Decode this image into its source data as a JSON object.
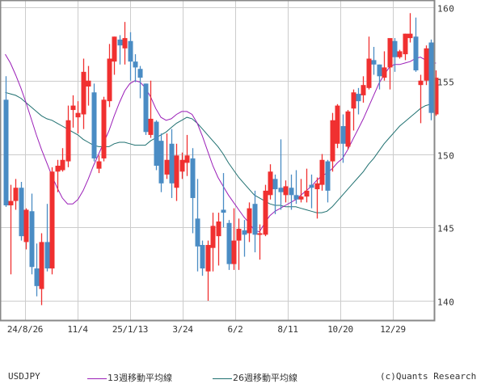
{
  "chart_data": {
    "type": "candlestick",
    "symbol": "USDJPY",
    "ylim": [
      138.7,
      160.4
    ],
    "yticks": [
      140,
      145,
      150,
      155,
      160
    ],
    "xtick_labels": [
      "24/8/26",
      "11/4",
      "25/1/13",
      "3/24",
      "6/2",
      "8/11",
      "10/20",
      "12/29"
    ],
    "grid": true,
    "colors": {
      "up": "#f03030",
      "down": "#4a8cc4",
      "ma13": "#9b1fb8",
      "ma26": "#1f7070",
      "grid": "#cccccc",
      "frame": "#888888"
    },
    "candles": [
      [
        153.7,
        155.3,
        146.4,
        146.5
      ],
      [
        146.5,
        147.9,
        141.8,
        146.8
      ],
      [
        146.8,
        148.3,
        146.2,
        147.7
      ],
      [
        147.7,
        148.1,
        144.1,
        144.4
      ],
      [
        144.0,
        146.3,
        143.5,
        146.2
      ],
      [
        146.1,
        147.3,
        141.8,
        142.3
      ],
      [
        142.2,
        143.9,
        140.3,
        141.0
      ],
      [
        140.8,
        144.6,
        139.7,
        144.0
      ],
      [
        144.0,
        146.6,
        142.0,
        142.2
      ],
      [
        142.2,
        149.1,
        141.8,
        148.8
      ],
      [
        148.8,
        149.6,
        147.4,
        149.2
      ],
      [
        148.9,
        150.4,
        148.8,
        149.6
      ],
      [
        149.5,
        153.3,
        149.1,
        152.3
      ],
      [
        153.0,
        154.0,
        151.8,
        153.3
      ],
      [
        152.5,
        153.6,
        151.4,
        152.8
      ],
      [
        152.7,
        156.5,
        151.7,
        155.6
      ],
      [
        154.6,
        156.0,
        153.3,
        155.0
      ],
      [
        154.2,
        154.8,
        149.5,
        149.7
      ],
      [
        149.0,
        149.9,
        148.7,
        149.5
      ],
      [
        149.7,
        153.9,
        149.5,
        153.7
      ],
      [
        153.6,
        157.5,
        153.2,
        156.5
      ],
      [
        156.3,
        158.0,
        155.4,
        158.0
      ],
      [
        157.8,
        158.1,
        156.1,
        157.4
      ],
      [
        157.2,
        159.0,
        156.1,
        157.9
      ],
      [
        157.7,
        158.3,
        155.0,
        156.3
      ],
      [
        156.3,
        156.8,
        154.9,
        155.9
      ],
      [
        155.8,
        156.0,
        153.8,
        155.2
      ],
      [
        154.8,
        154.8,
        151.3,
        151.5
      ],
      [
        151.3,
        155.0,
        151.1,
        152.4
      ],
      [
        152.2,
        152.3,
        148.9,
        149.2
      ],
      [
        150.9,
        151.4,
        147.4,
        148.0
      ],
      [
        148.6,
        151.4,
        148.3,
        149.6
      ],
      [
        150.7,
        151.7,
        147.0,
        148.0
      ],
      [
        147.7,
        150.7,
        146.8,
        149.9
      ],
      [
        148.8,
        150.1,
        148.3,
        149.6
      ],
      [
        149.4,
        151.3,
        148.5,
        149.9
      ],
      [
        149.7,
        150.4,
        144.6,
        147.0
      ],
      [
        145.6,
        148.3,
        142.0,
        143.7
      ],
      [
        143.8,
        144.1,
        141.7,
        142.2
      ],
      [
        142.0,
        144.1,
        140.0,
        143.8
      ],
      [
        143.6,
        146.0,
        142.0,
        145.1
      ],
      [
        144.4,
        146.0,
        142.4,
        145.4
      ],
      [
        146.2,
        148.7,
        145.0,
        146.0
      ],
      [
        145.3,
        145.5,
        142.1,
        142.5
      ],
      [
        142.5,
        146.3,
        142.1,
        144.1
      ],
      [
        144.1,
        145.6,
        142.1,
        144.9
      ],
      [
        144.8,
        145.5,
        143.0,
        144.5
      ],
      [
        144.6,
        146.7,
        144.0,
        146.3
      ],
      [
        146.6,
        147.5,
        143.3,
        144.5
      ],
      [
        144.5,
        145.2,
        142.8,
        144.6
      ],
      [
        144.5,
        147.9,
        144.4,
        147.5
      ],
      [
        147.2,
        149.3,
        146.9,
        148.8
      ],
      [
        148.3,
        148.6,
        145.9,
        147.6
      ],
      [
        147.7,
        151.0,
        146.2,
        147.4
      ],
      [
        147.2,
        148.2,
        146.7,
        147.8
      ],
      [
        147.7,
        148.6,
        146.2,
        147.2
      ],
      [
        147.2,
        148.9,
        146.6,
        146.9
      ],
      [
        146.9,
        148.3,
        146.7,
        147.1
      ],
      [
        147.1,
        149.0,
        146.7,
        147.5
      ],
      [
        147.9,
        148.6,
        146.3,
        147.7
      ],
      [
        147.6,
        148.4,
        145.6,
        148.0
      ],
      [
        147.9,
        150.0,
        147.5,
        149.6
      ],
      [
        149.5,
        149.6,
        146.7,
        147.5
      ],
      [
        149.5,
        152.8,
        148.8,
        152.3
      ],
      [
        150.7,
        153.4,
        150.4,
        153.3
      ],
      [
        151.9,
        152.7,
        149.4,
        150.7
      ],
      [
        150.5,
        153.0,
        150.3,
        152.9
      ],
      [
        153.1,
        154.4,
        151.6,
        154.2
      ],
      [
        154.1,
        154.5,
        152.7,
        153.6
      ],
      [
        154.0,
        155.3,
        153.5,
        154.7
      ],
      [
        154.5,
        158.0,
        154.4,
        156.5
      ],
      [
        156.4,
        157.3,
        155.4,
        156.1
      ],
      [
        156.1,
        156.1,
        154.4,
        155.3
      ],
      [
        155.2,
        157.0,
        155.0,
        155.9
      ],
      [
        155.9,
        157.1,
        154.4,
        157.9
      ],
      [
        157.7,
        157.9,
        155.6,
        156.6
      ],
      [
        156.6,
        157.1,
        156.5,
        157.0
      ],
      [
        156.8,
        158.2,
        156.4,
        158.2
      ],
      [
        157.9,
        159.6,
        157.6,
        158.2
      ],
      [
        158.0,
        159.3,
        155.6,
        155.7
      ],
      [
        154.7,
        155.4,
        152.1,
        155.0
      ],
      [
        155.0,
        157.4,
        154.7,
        157.2
      ],
      [
        157.6,
        157.8,
        152.3,
        152.8
      ],
      [
        152.7,
        155.7,
        152.6,
        155.2
      ]
    ],
    "ma13": [
      156.8,
      156.2,
      155.4,
      154.5,
      153.5,
      152.4,
      151.3,
      150.3,
      149.4,
      148.5,
      147.7,
      147.0,
      146.6,
      146.6,
      146.9,
      147.5,
      148.3,
      149.2,
      150.0,
      150.8,
      151.6,
      152.6,
      153.5,
      154.3,
      154.8,
      155.0,
      154.9,
      154.5,
      153.9,
      153.1,
      152.5,
      152.3,
      152.4,
      152.7,
      152.9,
      152.9,
      152.7,
      152.1,
      151.2,
      150.2,
      149.2,
      148.4,
      147.8,
      147.2,
      146.7,
      146.2,
      145.7,
      145.3,
      144.8,
      144.7,
      145.3,
      145.8,
      146.1,
      146.3,
      146.5,
      146.7,
      146.9,
      147.2,
      147.5,
      147.8,
      148.2,
      148.5,
      148.7,
      149.0,
      149.4,
      149.7,
      150.3,
      151.0,
      151.7,
      152.4,
      153.2,
      154.0,
      154.8,
      155.4,
      155.9,
      156.1,
      156.1,
      156.2,
      156.3,
      156.5,
      156.6,
      156.4,
      156.2,
      156.2
    ],
    "ma26": [
      154.2,
      154.1,
      154.0,
      153.8,
      153.5,
      153.2,
      152.9,
      152.6,
      152.4,
      152.3,
      152.1,
      151.9,
      151.7,
      151.5,
      151.3,
      151.0,
      150.8,
      150.6,
      150.5,
      150.5,
      150.5,
      150.7,
      150.8,
      150.8,
      150.7,
      150.6,
      150.6,
      150.6,
      150.9,
      151.1,
      151.3,
      151.5,
      151.8,
      152.1,
      152.3,
      152.5,
      152.4,
      152.1,
      151.7,
      151.3,
      150.9,
      150.5,
      150.0,
      149.4,
      148.9,
      148.4,
      148.0,
      147.6,
      147.2,
      147.0,
      146.8,
      146.6,
      146.5,
      146.5,
      146.4,
      146.4,
      146.4,
      146.3,
      146.2,
      146.1,
      146.0,
      146.0,
      146.1,
      146.4,
      146.8,
      147.2,
      147.6,
      148.0,
      148.4,
      148.8,
      149.3,
      149.7,
      150.2,
      150.7,
      151.1,
      151.5,
      151.9,
      152.2,
      152.5,
      152.8,
      153.1,
      153.3,
      153.4,
      153.6
    ]
  },
  "legend": {
    "symbol": "USDJPY",
    "ma13_label": "13週移動平均線",
    "ma26_label": "26週移動平均線",
    "copyright": "(c)Quants Research"
  }
}
